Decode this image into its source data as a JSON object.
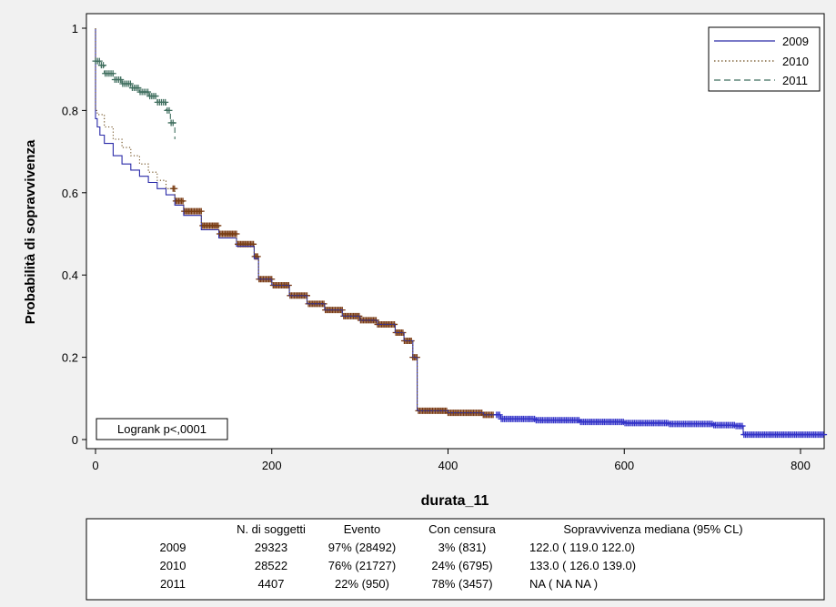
{
  "chart_data": {
    "type": "line",
    "title": "",
    "xlabel": "durata_11",
    "ylabel": "Probabilità di sopravvivenza",
    "xlim": [
      0,
      830
    ],
    "ylim": [
      0,
      1.03
    ],
    "x_ticks": [
      0,
      200,
      400,
      600,
      800
    ],
    "y_ticks": [
      0,
      0.2,
      0.4,
      0.6,
      0.8,
      1
    ],
    "x_tick_labels": [
      "0",
      "200",
      "400",
      "600",
      "800"
    ],
    "y_tick_labels": [
      "0",
      "0.2",
      "0.4",
      "0.6",
      "0.8",
      "1"
    ],
    "grid": false,
    "legend_position": "top-right",
    "annotation": "Logrank p<,0001",
    "series": [
      {
        "name": "2009",
        "line_style": "solid",
        "color": "#2a2aa8",
        "points": [
          [
            0,
            1.0
          ],
          [
            0,
            0.78
          ],
          [
            2,
            0.76
          ],
          [
            5,
            0.74
          ],
          [
            10,
            0.72
          ],
          [
            20,
            0.69
          ],
          [
            30,
            0.67
          ],
          [
            40,
            0.655
          ],
          [
            50,
            0.64
          ],
          [
            60,
            0.625
          ],
          [
            70,
            0.61
          ],
          [
            80,
            0.595
          ],
          [
            90,
            0.57
          ],
          [
            100,
            0.545
          ],
          [
            120,
            0.51
          ],
          [
            140,
            0.49
          ],
          [
            160,
            0.47
          ],
          [
            180,
            0.44
          ],
          [
            185,
            0.39
          ],
          [
            200,
            0.375
          ],
          [
            220,
            0.35
          ],
          [
            240,
            0.33
          ],
          [
            260,
            0.315
          ],
          [
            280,
            0.3
          ],
          [
            300,
            0.29
          ],
          [
            320,
            0.28
          ],
          [
            340,
            0.26
          ],
          [
            350,
            0.24
          ],
          [
            360,
            0.2
          ],
          [
            365,
            0.18
          ],
          [
            365,
            0.07
          ],
          [
            400,
            0.065
          ],
          [
            440,
            0.06
          ],
          [
            460,
            0.05
          ],
          [
            500,
            0.047
          ],
          [
            550,
            0.043
          ],
          [
            600,
            0.04
          ],
          [
            650,
            0.038
          ],
          [
            700,
            0.035
          ],
          [
            725,
            0.033
          ],
          [
            735,
            0.012
          ],
          [
            830,
            0.012
          ]
        ]
      },
      {
        "name": "2010",
        "line_style": "dotted",
        "color": "#6b4a1a",
        "points": [
          [
            0,
            1.0
          ],
          [
            0,
            0.8
          ],
          [
            2,
            0.79
          ],
          [
            10,
            0.76
          ],
          [
            20,
            0.73
          ],
          [
            30,
            0.71
          ],
          [
            40,
            0.69
          ],
          [
            50,
            0.67
          ],
          [
            60,
            0.65
          ],
          [
            70,
            0.63
          ],
          [
            80,
            0.61
          ],
          [
            90,
            0.58
          ],
          [
            100,
            0.555
          ],
          [
            120,
            0.52
          ],
          [
            140,
            0.5
          ],
          [
            160,
            0.475
          ],
          [
            180,
            0.445
          ],
          [
            185,
            0.39
          ],
          [
            200,
            0.375
          ],
          [
            220,
            0.35
          ],
          [
            240,
            0.33
          ],
          [
            260,
            0.315
          ],
          [
            280,
            0.3
          ],
          [
            300,
            0.29
          ],
          [
            320,
            0.28
          ],
          [
            340,
            0.26
          ],
          [
            350,
            0.24
          ],
          [
            360,
            0.2
          ],
          [
            365,
            0.18
          ],
          [
            365,
            0.07
          ],
          [
            400,
            0.065
          ],
          [
            440,
            0.06
          ],
          [
            455,
            0.058
          ]
        ]
      },
      {
        "name": "2011",
        "line_style": "dashed",
        "color": "#3f6e5e",
        "points": [
          [
            0,
            0.92
          ],
          [
            5,
            0.91
          ],
          [
            10,
            0.89
          ],
          [
            20,
            0.875
          ],
          [
            30,
            0.865
          ],
          [
            40,
            0.855
          ],
          [
            50,
            0.845
          ],
          [
            60,
            0.835
          ],
          [
            70,
            0.82
          ],
          [
            80,
            0.8
          ],
          [
            85,
            0.77
          ],
          [
            90,
            0.73
          ]
        ]
      }
    ],
    "summary_table": {
      "headers": [
        "",
        "N. di soggetti",
        "Evento",
        "Con censura",
        "Sopravvivenza mediana (95% CL)"
      ],
      "rows": [
        [
          "2009",
          "29323",
          "97% (28492)",
          "3% (831)",
          "122.0  ( 119.0   122.0)"
        ],
        [
          "2010",
          "28522",
          "76% (21727)",
          "24% (6795)",
          "133.0  ( 126.0   139.0)"
        ],
        [
          "2011",
          "4407",
          "22% (950)",
          "78% (3457)",
          "NA    (   NA       NA  )"
        ]
      ]
    }
  }
}
